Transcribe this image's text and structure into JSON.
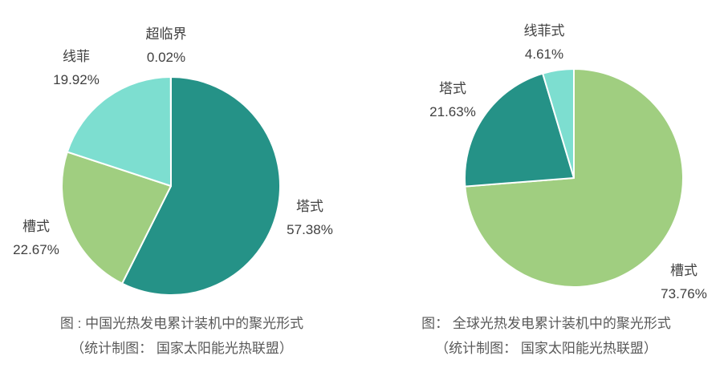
{
  "page": {
    "background": "#ffffff",
    "label_text_color": "#404040",
    "caption_text_color": "#595959",
    "slice_border_color": "#ffffff"
  },
  "chart_data": [
    {
      "type": "pie",
      "title": "图 : 中国光热发电累计装机中的聚光形式",
      "subtitle": "（统计制图： 国家太阳能光热联盟）",
      "labels": [
        "塔式",
        "槽式",
        "线菲",
        "超临界"
      ],
      "values": [
        57.38,
        22.67,
        19.92,
        0.02
      ],
      "value_labels": [
        "57.38%",
        "22.67%",
        "19.92%",
        "0.02%"
      ],
      "colors": [
        "#259287",
        "#A0CE80",
        "#7DDED0",
        "#259287"
      ],
      "start_angle_deg": 0,
      "direction": "clockwise",
      "legend_position": "none",
      "label_style": "outside"
    },
    {
      "type": "pie",
      "title": "图： 全球光热发电累计装机中的聚光形式",
      "subtitle": "（统计制图： 国家太阳能光热联盟）",
      "labels": [
        "槽式",
        "塔式",
        "线菲式"
      ],
      "values": [
        73.76,
        21.63,
        4.61
      ],
      "value_labels": [
        "73.76%",
        "21.63%",
        "4.61%"
      ],
      "colors": [
        "#A0CE80",
        "#259287",
        "#7DDED0"
      ],
      "start_angle_deg": 0,
      "direction": "clockwise",
      "legend_position": "none",
      "label_style": "outside"
    }
  ]
}
